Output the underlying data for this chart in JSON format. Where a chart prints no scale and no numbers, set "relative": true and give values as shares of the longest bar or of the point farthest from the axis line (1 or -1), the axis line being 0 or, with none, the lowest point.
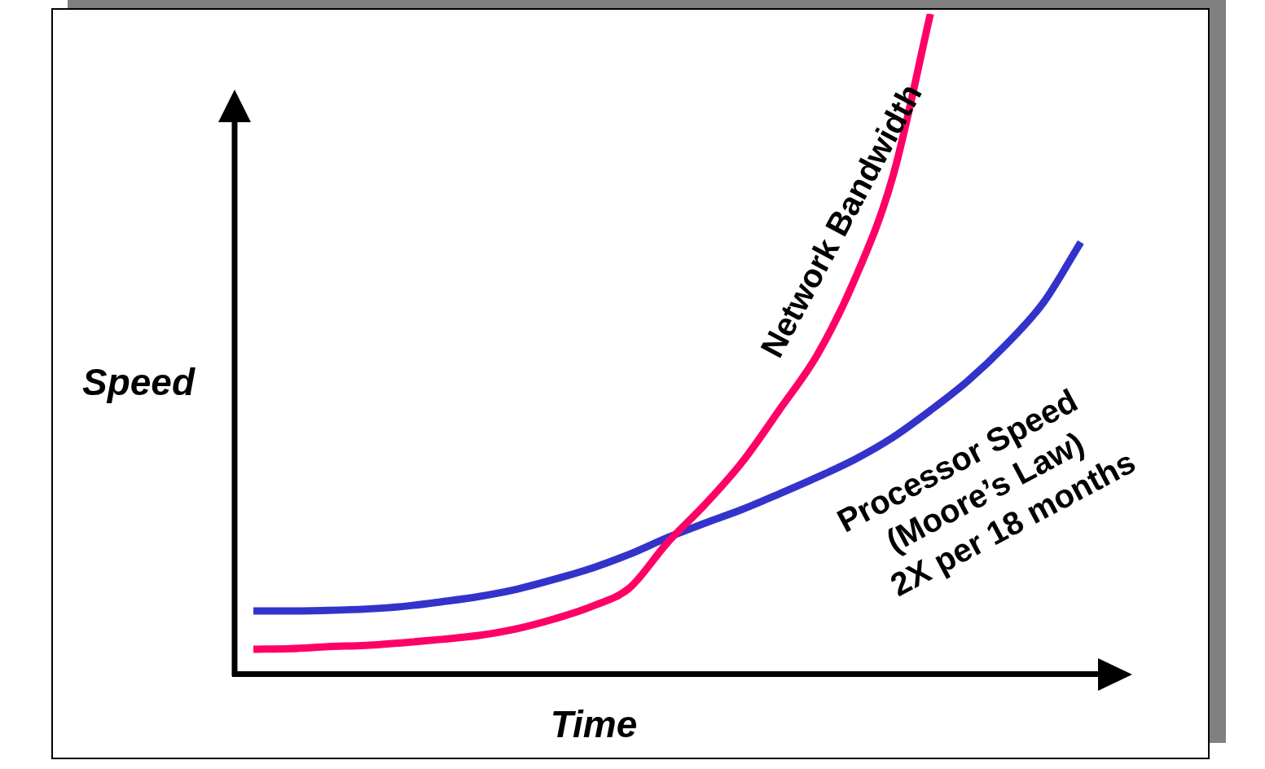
{
  "chart_data": {
    "type": "line",
    "relative": true,
    "xlabel": "Time",
    "ylabel": "Speed",
    "legend": false,
    "grid": false,
    "marker": "none",
    "line_style": "solid",
    "categories": [
      null,
      null,
      null,
      null,
      null,
      null,
      null,
      null,
      null,
      null,
      null,
      null,
      null,
      null,
      null,
      null,
      null,
      null,
      null,
      null,
      null,
      null,
      null
    ],
    "series": [
      {
        "name": "Network Bandwidth",
        "color": "#ff0066",
        "values": [
          0.037,
          0.038,
          0.041,
          0.043,
          0.047,
          0.052,
          0.058,
          0.068,
          0.083,
          0.102,
          0.13,
          0.198,
          0.256,
          0.321,
          0.401,
          0.484,
          0.599,
          0.753,
          1,
          null,
          null,
          null,
          null
        ]
      },
      {
        "name": "Processor Speed",
        "color": "#3333cc",
        "values": [
          0.095,
          0.095,
          0.096,
          0.098,
          0.102,
          0.109,
          0.117,
          0.128,
          0.143,
          0.16,
          0.181,
          0.206,
          0.228,
          0.249,
          0.273,
          0.298,
          0.325,
          0.358,
          0.399,
          0.444,
          0.498,
          0.562,
          0.654
        ]
      }
    ],
    "annotations": [
      "(Moore’s Law)",
      "2X per 18 months"
    ]
  }
}
